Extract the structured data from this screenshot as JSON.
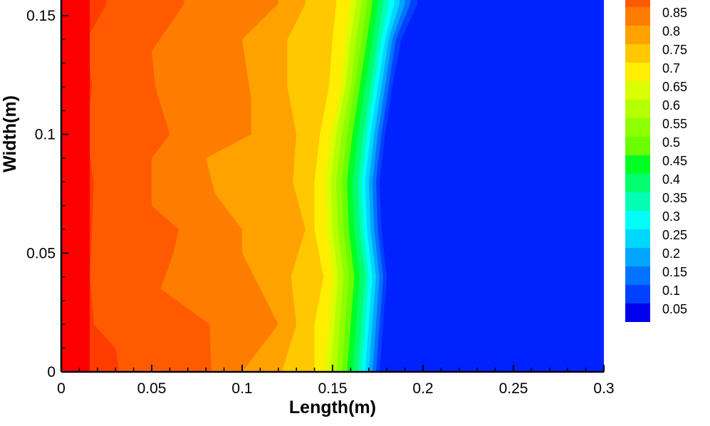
{
  "chart_data": {
    "type": "heatmap",
    "xlabel": "Length(m)",
    "ylabel": "Width(m)",
    "xlim": [
      0,
      0.3
    ],
    "ylim": [
      0,
      0.155
    ],
    "x_ticks": [
      {
        "value": 0,
        "label": "0"
      },
      {
        "value": 0.05,
        "label": "0.05"
      },
      {
        "value": 0.1,
        "label": "0.1"
      },
      {
        "value": 0.15,
        "label": "0.15"
      },
      {
        "value": 0.2,
        "label": "0.2"
      },
      {
        "value": 0.25,
        "label": "0.25"
      },
      {
        "value": 0.3,
        "label": "0.3"
      }
    ],
    "y_ticks": [
      {
        "value": 0,
        "label": "0"
      },
      {
        "value": 0.05,
        "label": "0.05"
      },
      {
        "value": 0.1,
        "label": "0.1"
      },
      {
        "value": 0.15,
        "label": "0.15"
      }
    ],
    "legend": {
      "placement": "right",
      "levels": [
        {
          "value": 0.85,
          "label": "0.85",
          "color": "#fe7d00"
        },
        {
          "value": 0.8,
          "label": "0.8",
          "color": "#ffa200"
        },
        {
          "value": 0.75,
          "label": "0.75",
          "color": "#ffc800"
        },
        {
          "value": 0.7,
          "label": "0.7",
          "color": "#ffee00"
        },
        {
          "value": 0.65,
          "label": "0.65",
          "color": "#d9ff00"
        },
        {
          "value": 0.6,
          "label": "0.6",
          "color": "#b4ff00"
        },
        {
          "value": 0.55,
          "label": "0.55",
          "color": "#8eff00"
        },
        {
          "value": 0.5,
          "label": "0.5",
          "color": "#69ff00"
        },
        {
          "value": 0.45,
          "label": "0.45",
          "color": "#00ff23"
        },
        {
          "value": 0.4,
          "label": "0.4",
          "color": "#00ff6e"
        },
        {
          "value": 0.35,
          "label": "0.35",
          "color": "#00ffb4"
        },
        {
          "value": 0.3,
          "label": "0.3",
          "color": "#00fff7"
        },
        {
          "value": 0.25,
          "label": "0.25",
          "color": "#00d7ff"
        },
        {
          "value": 0.2,
          "label": "0.2",
          "color": "#00a5ff"
        },
        {
          "value": 0.15,
          "label": "0.15",
          "color": "#0073ff"
        },
        {
          "value": 0.1,
          "label": "0.1",
          "color": "#0041ff"
        },
        {
          "value": 0.05,
          "label": "0.05",
          "color": "#0000ee"
        }
      ],
      "top_color": "#ff5a00"
    },
    "field": {
      "description_levels_low_to_high": true,
      "background_color": "#0022ff",
      "bands": [
        {
          "level": 1.0,
          "color": "#ff0000",
          "contour": [
            [
              0.0,
              0.0
            ],
            [
              0.0,
              0.155
            ]
          ]
        },
        {
          "level": 0.95,
          "color": "#ff3c00",
          "contour": [
            [
              0.032,
              0.0
            ],
            [
              0.03,
              0.01
            ],
            [
              0.018,
              0.02
            ],
            [
              0.016,
              0.04
            ],
            [
              0.017,
              0.06
            ],
            [
              0.018,
              0.08
            ],
            [
              0.014,
              0.1
            ],
            [
              0.017,
              0.12
            ],
            [
              0.014,
              0.14
            ],
            [
              0.025,
              0.155
            ]
          ]
        },
        {
          "level": 0.9,
          "color": "#ff5a00",
          "contour": [
            [
              0.083,
              0.0
            ],
            [
              0.082,
              0.02
            ],
            [
              0.055,
              0.035
            ],
            [
              0.062,
              0.05
            ],
            [
              0.065,
              0.06
            ],
            [
              0.05,
              0.07
            ],
            [
              0.05,
              0.09
            ],
            [
              0.06,
              0.1
            ],
            [
              0.052,
              0.12
            ],
            [
              0.05,
              0.135
            ],
            [
              0.068,
              0.155
            ]
          ]
        },
        {
          "level": 0.85,
          "color": "#fe7d00",
          "contour": [
            [
              0.1,
              0.0
            ],
            [
              0.12,
              0.02
            ],
            [
              0.11,
              0.035
            ],
            [
              0.1,
              0.05
            ],
            [
              0.1,
              0.06
            ],
            [
              0.085,
              0.075
            ],
            [
              0.08,
              0.09
            ],
            [
              0.105,
              0.1
            ],
            [
              0.105,
              0.115
            ],
            [
              0.1,
              0.14
            ],
            [
              0.12,
              0.155
            ]
          ]
        },
        {
          "level": 0.8,
          "color": "#ffa200",
          "contour": [
            [
              0.122,
              0.0
            ],
            [
              0.13,
              0.02
            ],
            [
              0.127,
              0.04
            ],
            [
              0.135,
              0.06
            ],
            [
              0.128,
              0.08
            ],
            [
              0.13,
              0.1
            ],
            [
              0.125,
              0.12
            ],
            [
              0.125,
              0.14
            ],
            [
              0.135,
              0.155
            ]
          ]
        },
        {
          "level": 0.75,
          "color": "#ffc800",
          "contour": [
            [
              0.14,
              0.0
            ],
            [
              0.14,
              0.02
            ],
            [
              0.145,
              0.04
            ],
            [
              0.14,
              0.06
            ],
            [
              0.14,
              0.08
            ],
            [
              0.143,
              0.1
            ],
            [
              0.148,
              0.12
            ],
            [
              0.15,
              0.14
            ],
            [
              0.152,
              0.155
            ]
          ]
        },
        {
          "level": 0.7,
          "color": "#ffee00",
          "contour": [
            [
              0.146,
              0.0
            ],
            [
              0.148,
              0.02
            ],
            [
              0.15,
              0.04
            ],
            [
              0.147,
              0.06
            ],
            [
              0.146,
              0.08
            ],
            [
              0.149,
              0.1
            ],
            [
              0.155,
              0.12
            ],
            [
              0.157,
              0.14
            ],
            [
              0.16,
              0.155
            ]
          ]
        },
        {
          "level": 0.65,
          "color": "#d9ff00",
          "contour": [
            [
              0.149,
              0.0
            ],
            [
              0.151,
              0.02
            ],
            [
              0.153,
              0.04
            ],
            [
              0.15,
              0.06
            ],
            [
              0.149,
              0.08
            ],
            [
              0.152,
              0.1
            ],
            [
              0.157,
              0.12
            ],
            [
              0.16,
              0.14
            ],
            [
              0.163,
              0.155
            ]
          ]
        },
        {
          "level": 0.6,
          "color": "#b4ff00",
          "contour": [
            [
              0.152,
              0.0
            ],
            [
              0.154,
              0.02
            ],
            [
              0.156,
              0.04
            ],
            [
              0.153,
              0.06
            ],
            [
              0.152,
              0.08
            ],
            [
              0.155,
              0.1
            ],
            [
              0.16,
              0.12
            ],
            [
              0.163,
              0.14
            ],
            [
              0.166,
              0.155
            ]
          ]
        },
        {
          "level": 0.55,
          "color": "#8eff00",
          "contour": [
            [
              0.155,
              0.0
            ],
            [
              0.157,
              0.02
            ],
            [
              0.159,
              0.04
            ],
            [
              0.156,
              0.06
            ],
            [
              0.155,
              0.08
            ],
            [
              0.158,
              0.1
            ],
            [
              0.162,
              0.12
            ],
            [
              0.166,
              0.14
            ],
            [
              0.169,
              0.155
            ]
          ]
        },
        {
          "level": 0.5,
          "color": "#69ff00",
          "contour": [
            [
              0.158,
              0.0
            ],
            [
              0.16,
              0.02
            ],
            [
              0.162,
              0.04
            ],
            [
              0.159,
              0.06
            ],
            [
              0.158,
              0.08
            ],
            [
              0.161,
              0.1
            ],
            [
              0.165,
              0.12
            ],
            [
              0.169,
              0.14
            ],
            [
              0.172,
              0.155
            ]
          ]
        },
        {
          "level": 0.45,
          "color": "#00ff23",
          "contour": [
            [
              0.161,
              0.0
            ],
            [
              0.163,
              0.02
            ],
            [
              0.165,
              0.04
            ],
            [
              0.162,
              0.06
            ],
            [
              0.161,
              0.08
            ],
            [
              0.164,
              0.1
            ],
            [
              0.168,
              0.12
            ],
            [
              0.172,
              0.14
            ],
            [
              0.175,
              0.155
            ]
          ]
        },
        {
          "level": 0.4,
          "color": "#00ff6e",
          "contour": [
            [
              0.164,
              0.0
            ],
            [
              0.166,
              0.02
            ],
            [
              0.168,
              0.04
            ],
            [
              0.165,
              0.06
            ],
            [
              0.164,
              0.08
            ],
            [
              0.167,
              0.1
            ],
            [
              0.171,
              0.12
            ],
            [
              0.175,
              0.14
            ],
            [
              0.178,
              0.155
            ]
          ]
        },
        {
          "level": 0.35,
          "color": "#00ffb4",
          "contour": [
            [
              0.166,
              0.0
            ],
            [
              0.168,
              0.02
            ],
            [
              0.17,
              0.04
            ],
            [
              0.167,
              0.06
            ],
            [
              0.166,
              0.08
            ],
            [
              0.169,
              0.1
            ],
            [
              0.173,
              0.12
            ],
            [
              0.177,
              0.14
            ],
            [
              0.181,
              0.155
            ]
          ]
        },
        {
          "level": 0.3,
          "color": "#00fff7",
          "contour": [
            [
              0.168,
              0.0
            ],
            [
              0.17,
              0.02
            ],
            [
              0.172,
              0.04
            ],
            [
              0.169,
              0.06
            ],
            [
              0.168,
              0.08
            ],
            [
              0.171,
              0.1
            ],
            [
              0.175,
              0.12
            ],
            [
              0.179,
              0.14
            ],
            [
              0.184,
              0.155
            ]
          ]
        },
        {
          "level": 0.25,
          "color": "#00d7ff",
          "contour": [
            [
              0.17,
              0.0
            ],
            [
              0.172,
              0.02
            ],
            [
              0.174,
              0.04
            ],
            [
              0.171,
              0.06
            ],
            [
              0.17,
              0.08
            ],
            [
              0.173,
              0.1
            ],
            [
              0.177,
              0.12
            ],
            [
              0.181,
              0.14
            ],
            [
              0.187,
              0.155
            ]
          ]
        },
        {
          "level": 0.2,
          "color": "#00a5ff",
          "contour": [
            [
              0.172,
              0.0
            ],
            [
              0.174,
              0.02
            ],
            [
              0.176,
              0.04
            ],
            [
              0.173,
              0.06
            ],
            [
              0.172,
              0.08
            ],
            [
              0.175,
              0.1
            ],
            [
              0.179,
              0.12
            ],
            [
              0.183,
              0.14
            ],
            [
              0.19,
              0.155
            ]
          ]
        },
        {
          "level": 0.15,
          "color": "#0073ff",
          "contour": [
            [
              0.174,
              0.0
            ],
            [
              0.176,
              0.02
            ],
            [
              0.178,
              0.04
            ],
            [
              0.175,
              0.06
            ],
            [
              0.174,
              0.08
            ],
            [
              0.177,
              0.1
            ],
            [
              0.181,
              0.12
            ],
            [
              0.185,
              0.14
            ],
            [
              0.193,
              0.155
            ]
          ]
        },
        {
          "level": 0.1,
          "color": "#0041ff",
          "contour": [
            [
              0.176,
              0.0
            ],
            [
              0.178,
              0.02
            ],
            [
              0.18,
              0.04
            ],
            [
              0.177,
              0.06
            ],
            [
              0.176,
              0.08
            ],
            [
              0.179,
              0.1
            ],
            [
              0.183,
              0.12
            ],
            [
              0.188,
              0.14
            ],
            [
              0.197,
              0.155
            ]
          ]
        }
      ]
    }
  }
}
